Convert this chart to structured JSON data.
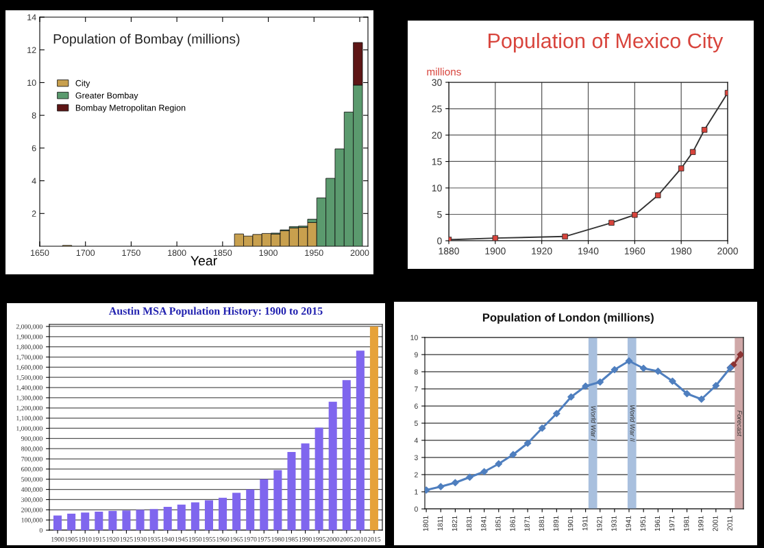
{
  "chart_data": [
    {
      "type": "bar",
      "title": "Population of Bombay (millions)",
      "xlabel": "Year",
      "stacked": true,
      "legend": "top left",
      "x": [
        1680,
        1868,
        1878,
        1888,
        1898,
        1908,
        1918,
        1928,
        1938,
        1948,
        1958,
        1968,
        1978,
        1988,
        1998
      ],
      "series": [
        {
          "name": "City",
          "color": "#c8a04e",
          "values": [
            0.05,
            0.75,
            0.62,
            0.72,
            0.78,
            0.75,
            0.95,
            1.12,
            1.15,
            1.45,
            null,
            null,
            null,
            null,
            null
          ]
        },
        {
          "name": "Greater Bombay",
          "color": "#5b9a6e",
          "values": [
            null,
            null,
            null,
            null,
            null,
            0.05,
            0.05,
            0.08,
            0.08,
            0.2,
            2.95,
            4.15,
            5.95,
            8.2,
            9.85
          ]
        },
        {
          "name": "Bombay Metropolitan Region",
          "color": "#5e1616",
          "values": [
            null,
            null,
            null,
            null,
            null,
            null,
            null,
            null,
            null,
            null,
            null,
            null,
            null,
            null,
            2.6
          ]
        }
      ],
      "xlim": [
        1650,
        2009
      ],
      "ylim": [
        0,
        14
      ],
      "xticks": [
        1650,
        1700,
        1750,
        1800,
        1850,
        1900,
        1950,
        2000
      ],
      "yticks": [
        2,
        4,
        6,
        8,
        10,
        12,
        14
      ]
    },
    {
      "type": "line",
      "title": "Population of Mexico City",
      "ylabel": "millions",
      "marker": "square",
      "grid": true,
      "x": [
        1880,
        1900,
        1930,
        1950,
        1960,
        1970,
        1980,
        1985,
        1990,
        2000
      ],
      "series": [
        {
          "color": "#333333",
          "colors": [
            "#d8443c",
            "#d8443c",
            "#d8443c",
            "#d8443c",
            "#d8443c",
            "#d8443c",
            "#d8443c",
            "#d8443c",
            "#d8443c",
            "#d8443c"
          ],
          "values": [
            0.2,
            0.5,
            0.8,
            3.4,
            4.9,
            8.6,
            13.7,
            16.8,
            21.0,
            28.0
          ]
        }
      ],
      "xlim": [
        1880,
        2000
      ],
      "ylim": [
        0,
        30
      ],
      "xticks": [
        1880,
        1900,
        1920,
        1940,
        1960,
        1980,
        2000
      ],
      "yticks": [
        0,
        5,
        10,
        15,
        20,
        25,
        30
      ]
    },
    {
      "type": "bar",
      "title": "Austin MSA Population History: 1900 to 2015",
      "grid": "y",
      "categories": [
        "1900",
        "1905",
        "1910",
        "1915",
        "1920",
        "1925",
        "1930",
        "1935",
        "1940",
        "1945",
        "1950",
        "1955",
        "1960",
        "1965",
        "1970",
        "1975",
        "1980",
        "1985",
        "1990",
        "1995",
        "2000",
        "2005",
        "2010",
        "2015"
      ],
      "values": [
        144000,
        162000,
        173000,
        182000,
        189000,
        193000,
        200000,
        207000,
        229000,
        251000,
        273000,
        293000,
        318000,
        367000,
        400000,
        500000,
        589000,
        767000,
        851000,
        1007000,
        1260000,
        1473000,
        1762000,
        2000000
      ],
      "colors": [
        "#7f66ee",
        "#7f66ee",
        "#7f66ee",
        "#7f66ee",
        "#7f66ee",
        "#7f66ee",
        "#7f66ee",
        "#7f66ee",
        "#7f66ee",
        "#7f66ee",
        "#7f66ee",
        "#7f66ee",
        "#7f66ee",
        "#7f66ee",
        "#7f66ee",
        "#7f66ee",
        "#7f66ee",
        "#7f66ee",
        "#7f66ee",
        "#7f66ee",
        "#7f66ee",
        "#7f66ee",
        "#7f66ee",
        "#e6a23a"
      ],
      "ylim": [
        0,
        2020000
      ],
      "yticks": [
        0,
        {
          "value": 100000,
          "label": "100,000"
        },
        {
          "value": 200000,
          "label": "200,000"
        },
        {
          "value": 300000,
          "label": "300,000"
        },
        {
          "value": 400000,
          "label": "400,000"
        },
        {
          "value": 500000,
          "label": "500,000"
        },
        {
          "value": 600000,
          "label": "600,000"
        },
        {
          "value": 700000,
          "label": "700,000"
        },
        {
          "value": 800000,
          "label": "800,000"
        },
        {
          "value": 900000,
          "label": "900,000"
        },
        {
          "value": 1000000,
          "label": "1,000,000"
        },
        {
          "value": 1100000,
          "label": "1,100,000"
        },
        {
          "value": 1200000,
          "label": "1,200,000"
        },
        {
          "value": 1300000,
          "label": "1,300,000"
        },
        {
          "value": 1400000,
          "label": "1,400,000"
        },
        {
          "value": 1500000,
          "label": "1,500,000"
        },
        {
          "value": 1600000,
          "label": "1,600,000"
        },
        {
          "value": 1700000,
          "label": "1,700,000"
        },
        {
          "value": 1800000,
          "label": "1,800,000"
        },
        {
          "value": 1900000,
          "label": "1,900,000"
        },
        {
          "value": 2000000,
          "label": "2,000,000"
        }
      ]
    },
    {
      "type": "line",
      "title": "Population of London (millions)",
      "marker": "diamond",
      "grid": "y",
      "series": [
        {
          "color": "#4f7fbf",
          "x": [
            1801,
            1811,
            1821,
            1831,
            1841,
            1851,
            1861,
            1871,
            1881,
            1891,
            1901,
            1911,
            1921,
            1931,
            1941,
            1951,
            1961,
            1971,
            1981,
            1991,
            2001,
            2011
          ],
          "values": [
            1.1,
            1.3,
            1.53,
            1.85,
            2.17,
            2.63,
            3.17,
            3.83,
            4.71,
            5.56,
            6.53,
            7.16,
            7.4,
            8.12,
            8.63,
            8.2,
            8.03,
            7.45,
            6.72,
            6.4,
            7.19,
            8.23
          ]
        },
        {
          "color": "#8b3434",
          "x": [
            2011,
            2013,
            2018
          ],
          "values": [
            8.23,
            8.4,
            9.0
          ]
        }
      ],
      "bands": [
        {
          "axis": "x",
          "from": 1913,
          "to": 1919,
          "label": "World War I",
          "color": "#a9c0de"
        },
        {
          "axis": "x",
          "from": 1940,
          "to": 1946,
          "label": "World War II",
          "color": "#a9c0de"
        },
        {
          "axis": "x",
          "from": 2014,
          "to": 2020,
          "label": "Forecast",
          "color": "#cfa8a8"
        }
      ],
      "xlim": [
        1800,
        2020
      ],
      "ylim": [
        0,
        10
      ],
      "xticks": [
        1801,
        1811,
        1821,
        1831,
        1841,
        1851,
        1861,
        1871,
        1881,
        1891,
        1901,
        1911,
        1921,
        1931,
        1941,
        1951,
        1961,
        1971,
        1981,
        1991,
        2001,
        2011
      ],
      "yticks": [
        0,
        1,
        2,
        3,
        4,
        5,
        6,
        7,
        8,
        9,
        10
      ]
    }
  ]
}
